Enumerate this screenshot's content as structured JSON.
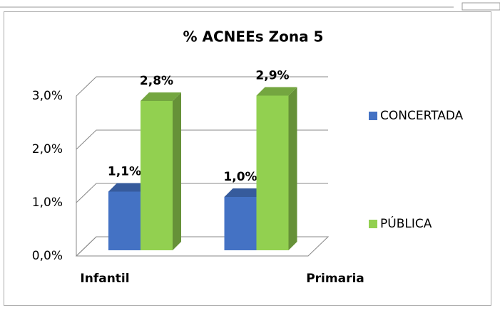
{
  "chart_data": {
    "type": "bar3d",
    "title": "% ACNEEs Zona 5",
    "categories": [
      "Infantil",
      "Primaria"
    ],
    "series": [
      {
        "name": "CONCERTADA",
        "color": "#4472c4",
        "values": [
          1.1,
          1.0
        ],
        "value_labels": [
          "1,1%",
          "1,0%"
        ]
      },
      {
        "name": "PÚBLICA",
        "color": "#92d050",
        "values": [
          2.8,
          2.9
        ],
        "value_labels": [
          "2,8%",
          "2,9%"
        ]
      }
    ],
    "ylim": [
      0,
      3
    ],
    "yticks": [
      {
        "value": 0,
        "label": "0,0%"
      },
      {
        "value": 1,
        "label": "1,0%"
      },
      {
        "value": 2,
        "label": "2,0%"
      },
      {
        "value": 3,
        "label": "3,0%"
      }
    ],
    "grid": true,
    "legend": "right"
  }
}
